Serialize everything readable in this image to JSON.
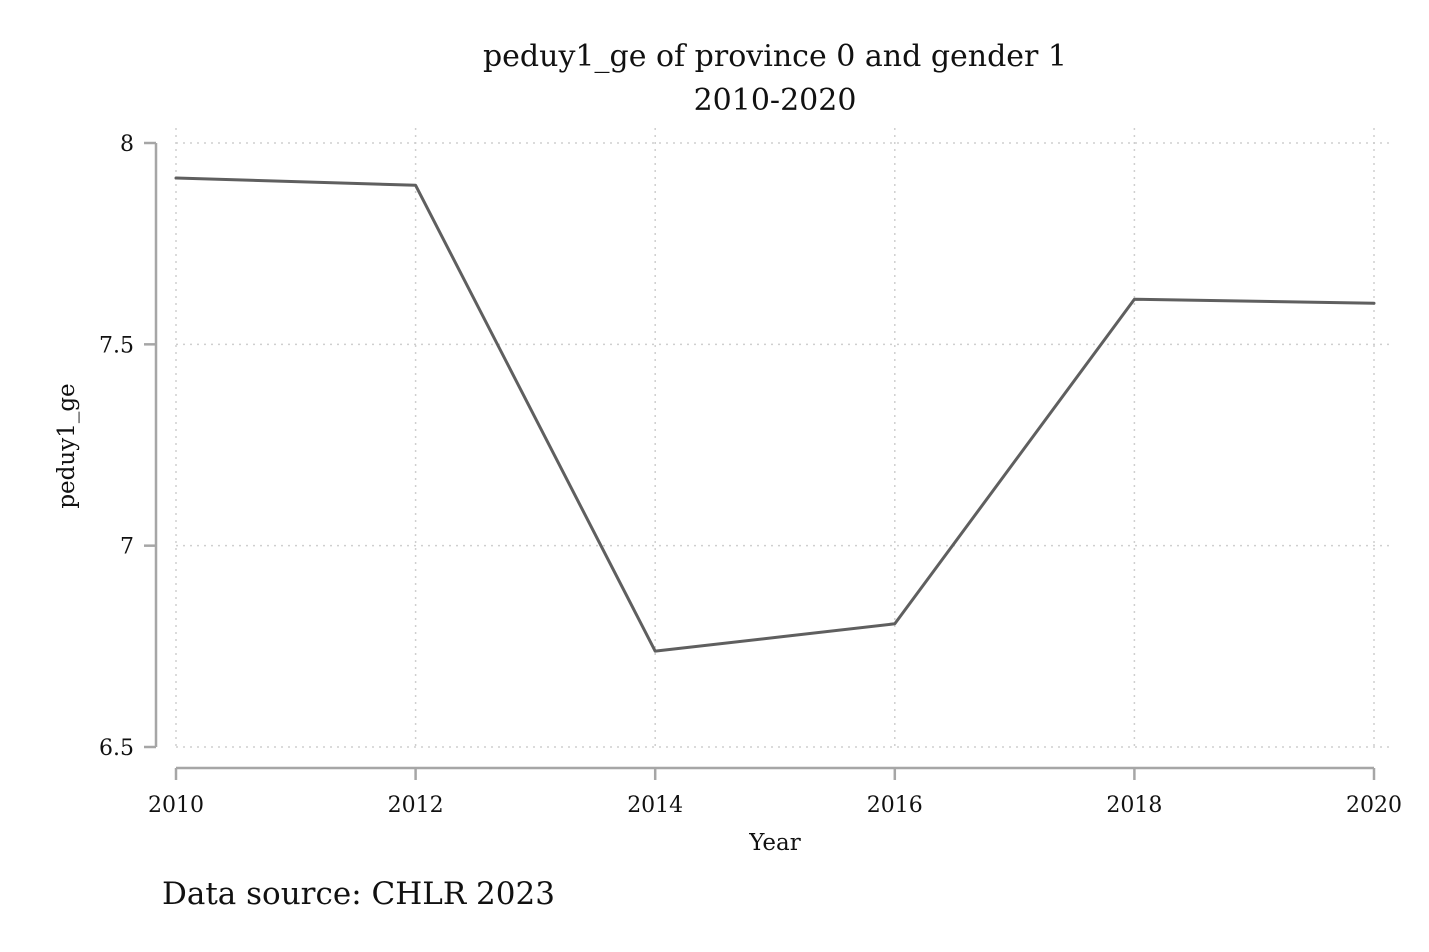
{
  "chart_data": {
    "type": "line",
    "title": "peduy1_ge of province 0 and gender 1",
    "subtitle": "2010-2020",
    "xlabel": "Year",
    "ylabel": "peduy1_ge",
    "x": [
      2010,
      2012,
      2014,
      2016,
      2018,
      2020
    ],
    "series": [
      {
        "values": [
          7.913,
          7.895,
          6.738,
          6.806,
          7.612,
          7.602
        ]
      }
    ],
    "xlim": [
      2010,
      2020
    ],
    "ylim": [
      6.5,
      8
    ],
    "xticks": [
      2010,
      2012,
      2014,
      2016,
      2018,
      2020
    ],
    "yticks": [
      6.5,
      7,
      7.5,
      8
    ],
    "xtick_labels": [
      "2010",
      "2012",
      "2014",
      "2016",
      "2018",
      "2020"
    ],
    "ytick_labels": [
      "6.5",
      "7",
      "7.5",
      "8"
    ],
    "grid": true,
    "line_color": "#5f5f5f",
    "axis_color": "#a6a6a6",
    "grid_color": "#cfcfcf"
  },
  "note": "Data source: CHLR 2023"
}
